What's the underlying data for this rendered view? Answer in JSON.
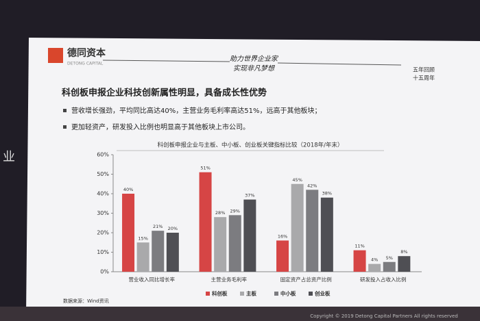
{
  "slide": {
    "logo": "德同资本",
    "logo_sub": "DETONG CAPITAL",
    "slogan": [
      "助力世界企业家",
      "实现非凡梦想"
    ],
    "badge": [
      "五年回顾",
      "十五周年"
    ],
    "title": "科创板申报企业科技创新属性明显，具备成长性优势",
    "bullets": [
      "营收增长强劲，平均同比高达40%，主营业务毛利率高达51%，远高于其他板块；",
      "更加轻资产，研发投入比例也明显高于其他板块上市公司。"
    ],
    "source": "数据来源：Wind资讯",
    "footer": "Copyright © 2019 Detong Capital Partners All rights reserved",
    "side_text": "业"
  },
  "chart_data": {
    "type": "bar",
    "title": "科创板申报企业与主板、中小板、创业板关键指标比较（2018年/年末）",
    "categories": [
      "营业收入同比增长率",
      "主营业务毛利率",
      "固定资产占总资产比例",
      "研发投入占收入比例"
    ],
    "series": [
      {
        "name": "科创板",
        "color": "#d64545",
        "values": [
          40,
          51,
          16,
          11
        ],
        "value_labels": [
          "40%",
          "51%",
          "16%",
          "11%"
        ]
      },
      {
        "name": "主板",
        "color": "#a9a9ab",
        "values": [
          15,
          28,
          45,
          4
        ],
        "value_labels": [
          "15%",
          "28%",
          "45%",
          "4%"
        ]
      },
      {
        "name": "中小板",
        "color": "#7c7c80",
        "values": [
          21,
          29,
          42,
          5
        ],
        "value_labels": [
          "21%",
          "29%",
          "42%",
          "5%"
        ]
      },
      {
        "name": "创业板",
        "color": "#4f4f54",
        "values": [
          20,
          37,
          38,
          8
        ],
        "value_labels": [
          "20%",
          "37%",
          "38%",
          "8%"
        ]
      }
    ],
    "ylim": [
      0,
      60
    ],
    "yticks": [
      {
        "value": 0,
        "label": "0%"
      },
      {
        "value": 10,
        "label": "10%"
      },
      {
        "value": 20,
        "label": "20%"
      },
      {
        "value": 30,
        "label": "30%"
      },
      {
        "value": 40,
        "label": "40%"
      },
      {
        "value": 50,
        "label": "50%"
      },
      {
        "value": 60,
        "label": "60%"
      }
    ],
    "grid": false
  }
}
